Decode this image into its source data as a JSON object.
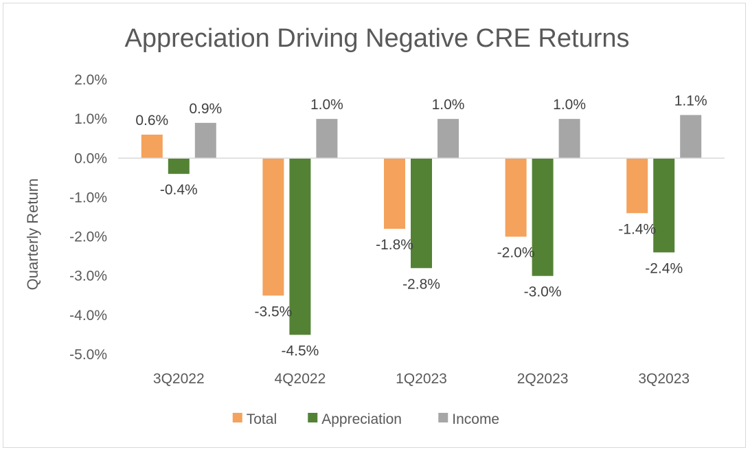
{
  "chart_data": {
    "type": "bar",
    "title": "Appreciation Driving Negative CRE Returns",
    "xlabel": "",
    "ylabel": "Quarterly Return",
    "categories": [
      "3Q2022",
      "4Q2022",
      "1Q2023",
      "2Q2023",
      "3Q2023"
    ],
    "series": [
      {
        "name": "Total",
        "color": "#f4a25c",
        "values": [
          0.6,
          -3.5,
          -1.8,
          -2.0,
          -1.4
        ],
        "labels": [
          "0.6%",
          "-3.5%",
          "-1.8%",
          "-2.0%",
          "-1.4%"
        ]
      },
      {
        "name": "Appreciation",
        "color": "#548235",
        "values": [
          -0.4,
          -4.5,
          -2.8,
          -3.0,
          -2.4
        ],
        "labels": [
          "-0.4%",
          "-4.5%",
          "-2.8%",
          "-3.0%",
          "-2.4%"
        ]
      },
      {
        "name": "Income",
        "color": "#a6a6a6",
        "values": [
          0.9,
          1.0,
          1.0,
          1.0,
          1.1
        ],
        "labels": [
          "0.9%",
          "1.0%",
          "1.0%",
          "1.0%",
          "1.1%"
        ]
      }
    ],
    "ylim": [
      -5.0,
      2.0
    ],
    "yticks": [
      2.0,
      1.0,
      0.0,
      -1.0,
      -2.0,
      -3.0,
      -4.0,
      -5.0
    ],
    "ytick_labels": [
      "2.0%",
      "1.0%",
      "0.0%",
      "-1.0%",
      "-2.0%",
      "-3.0%",
      "-4.0%",
      "-5.0%"
    ],
    "grid": false,
    "legend": "bottom"
  }
}
